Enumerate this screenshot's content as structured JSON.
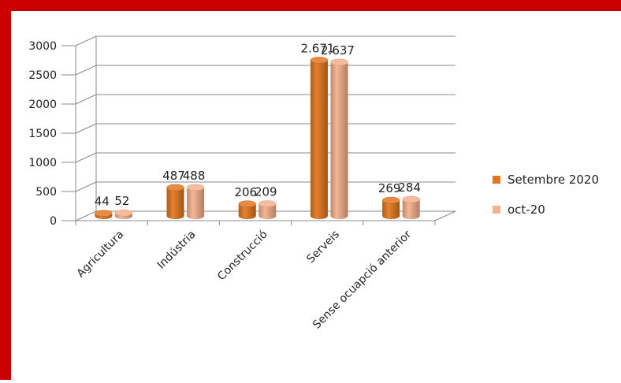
{
  "chart_data": {
    "type": "bar",
    "categories": [
      "Agricultura",
      "Indústria",
      "Construcció",
      "Serveis",
      "Sense ocuapció anterior"
    ],
    "series": [
      {
        "name": "Setembre 2020",
        "values": [
          44,
          487,
          206,
          2671,
          269
        ],
        "labels": [
          "44",
          "487",
          "206",
          "2.671",
          "269"
        ],
        "color": "#e2761f"
      },
      {
        "name": "oct-20",
        "values": [
          52,
          488,
          209,
          2637,
          284
        ],
        "labels": [
          "52",
          "488",
          "209",
          "2.637",
          "284"
        ],
        "color": "#f4b08c"
      }
    ],
    "y_ticks": [
      "0",
      "500",
      "1000",
      "1500",
      "2000",
      "2500",
      "3000"
    ],
    "ylim": [
      0,
      3000
    ],
    "grid": true,
    "legend_position": "right",
    "three_d": true
  },
  "colors": {
    "frame": "#cc0000"
  }
}
